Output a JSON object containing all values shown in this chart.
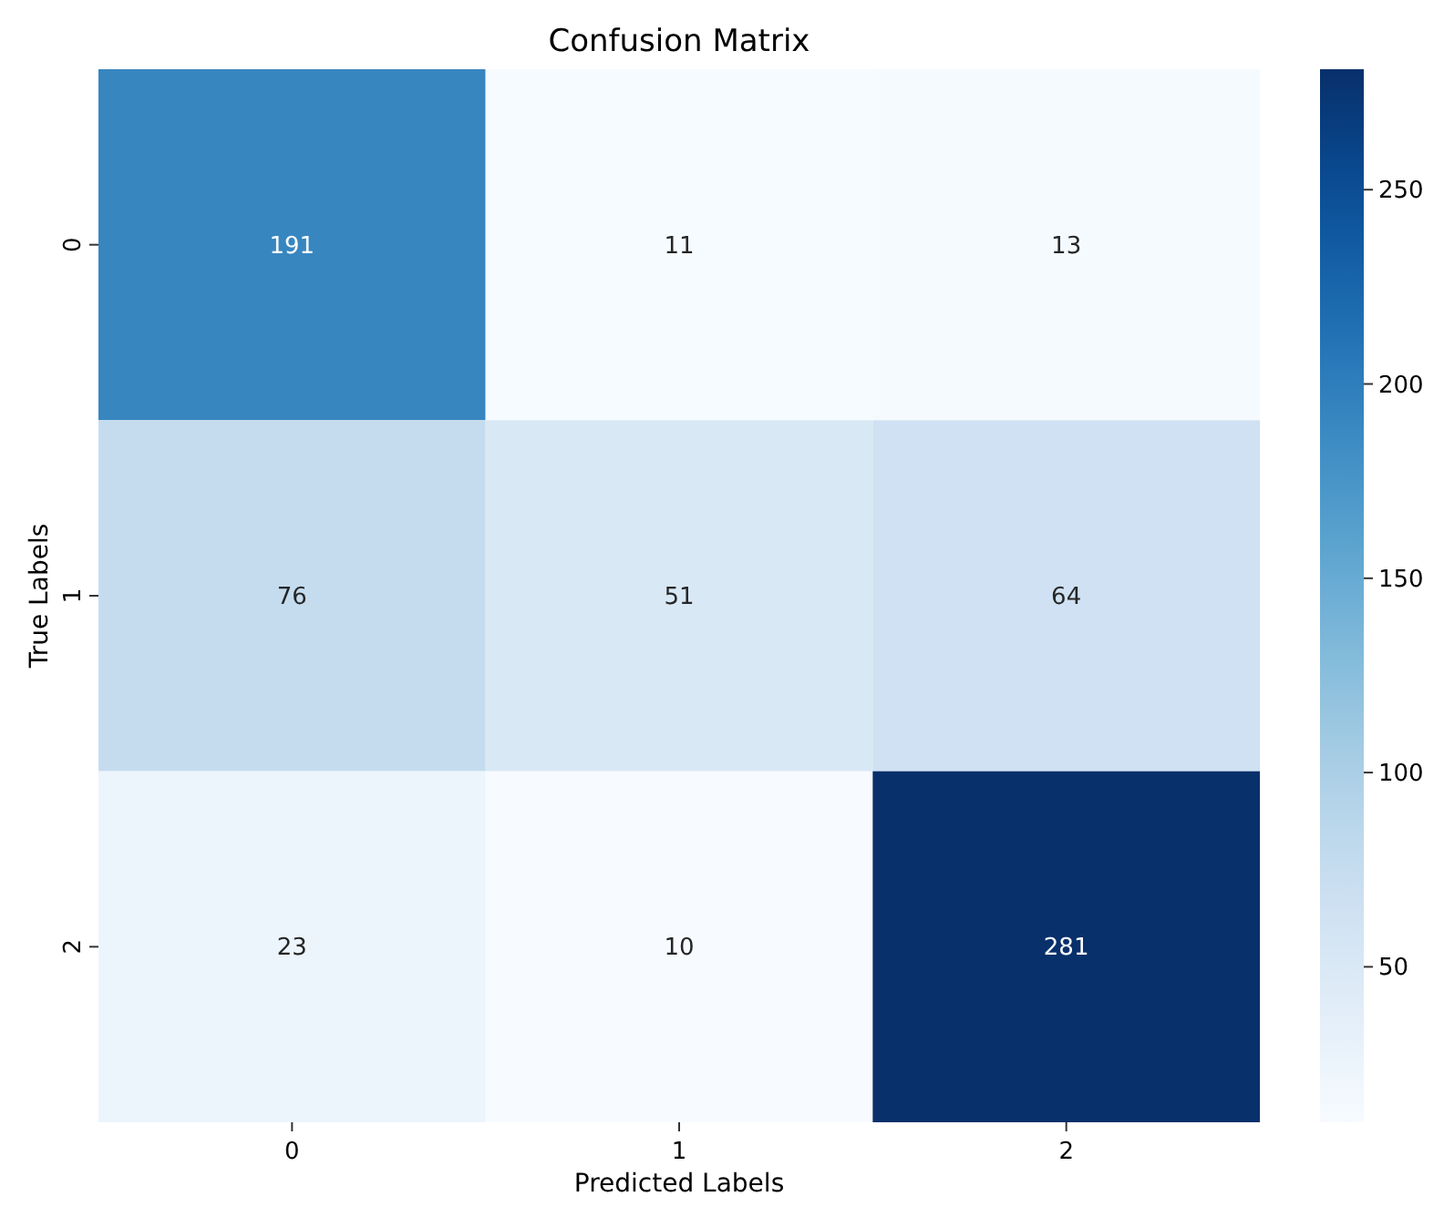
{
  "chart_data": {
    "type": "heatmap",
    "title": "Confusion Matrix",
    "xlabel": "Predicted Labels",
    "ylabel": "True Labels",
    "categories": [
      "0",
      "1",
      "2"
    ],
    "y_categories": [
      "0",
      "1",
      "2"
    ],
    "cells": [
      [
        191,
        11,
        13
      ],
      [
        76,
        51,
        64
      ],
      [
        23,
        10,
        281
      ]
    ],
    "clim": [
      10,
      281
    ],
    "cticks": [
      50,
      100,
      150,
      200,
      250
    ],
    "data_labels": true
  }
}
